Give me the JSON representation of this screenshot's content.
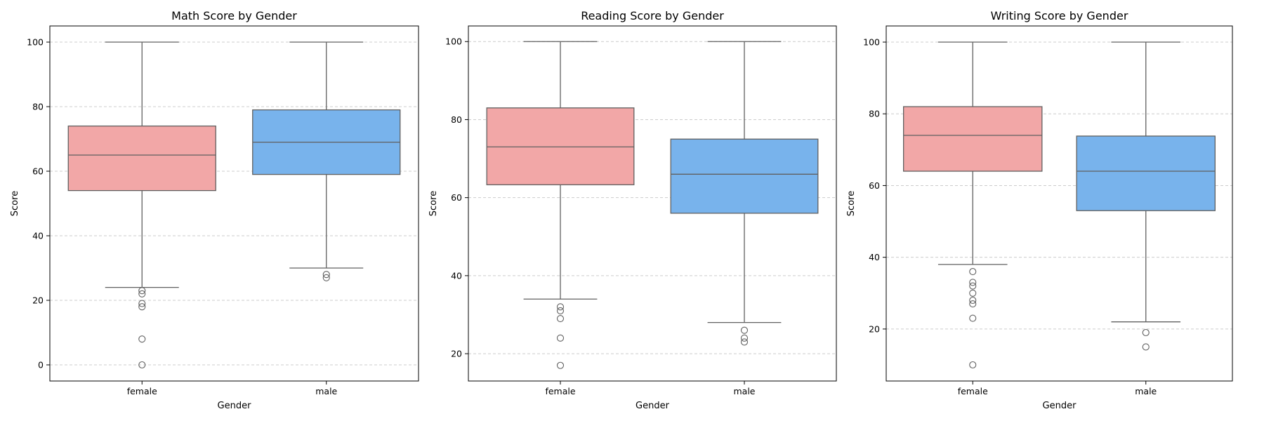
{
  "chart_data": [
    {
      "type": "box",
      "title": "Math Score by Gender",
      "xlabel": "Gender",
      "ylabel": "Score",
      "ylim": [
        -5,
        105
      ],
      "yticks": [
        0,
        20,
        40,
        60,
        80,
        100
      ],
      "grid": "horizontal dashed",
      "categories": [
        "female",
        "male"
      ],
      "boxes": [
        {
          "category": "female",
          "color": "#f2a7a7",
          "whislo": 24,
          "q1": 54,
          "median": 65,
          "q3": 74,
          "whishi": 100,
          "fliers": [
            23,
            22,
            19,
            18,
            8,
            0
          ]
        },
        {
          "category": "male",
          "color": "#78b3ec",
          "whislo": 30,
          "q1": 59,
          "median": 69,
          "q3": 79,
          "whishi": 100,
          "fliers": [
            28,
            27
          ]
        }
      ]
    },
    {
      "type": "box",
      "title": "Reading Score by Gender",
      "xlabel": "Gender",
      "ylabel": "Score",
      "ylim": [
        13,
        104
      ],
      "yticks": [
        20,
        40,
        60,
        80,
        100
      ],
      "grid": "horizontal dashed",
      "categories": [
        "female",
        "male"
      ],
      "boxes": [
        {
          "category": "female",
          "color": "#f2a7a7",
          "whislo": 34,
          "q1": 63.3,
          "median": 73,
          "q3": 83,
          "whishi": 100,
          "fliers": [
            32,
            31,
            29,
            24,
            17
          ]
        },
        {
          "category": "male",
          "color": "#78b3ec",
          "whislo": 28,
          "q1": 56,
          "median": 66,
          "q3": 75,
          "whishi": 100,
          "fliers": [
            26,
            24,
            23
          ]
        }
      ]
    },
    {
      "type": "box",
      "title": "Writing Score by Gender",
      "xlabel": "Gender",
      "ylabel": "Score",
      "ylim": [
        5.5,
        104.5
      ],
      "yticks": [
        20,
        40,
        60,
        80,
        100
      ],
      "grid": "horizontal dashed",
      "categories": [
        "female",
        "male"
      ],
      "boxes": [
        {
          "category": "female",
          "color": "#f2a7a7",
          "whislo": 38,
          "q1": 64,
          "median": 74,
          "q3": 82,
          "whishi": 100,
          "fliers": [
            36,
            33,
            32,
            30,
            28,
            27,
            23,
            10
          ]
        },
        {
          "category": "male",
          "color": "#78b3ec",
          "whislo": 22,
          "q1": 53,
          "median": 64,
          "q3": 73.8,
          "whishi": 100,
          "fliers": [
            19,
            15
          ]
        }
      ]
    }
  ]
}
